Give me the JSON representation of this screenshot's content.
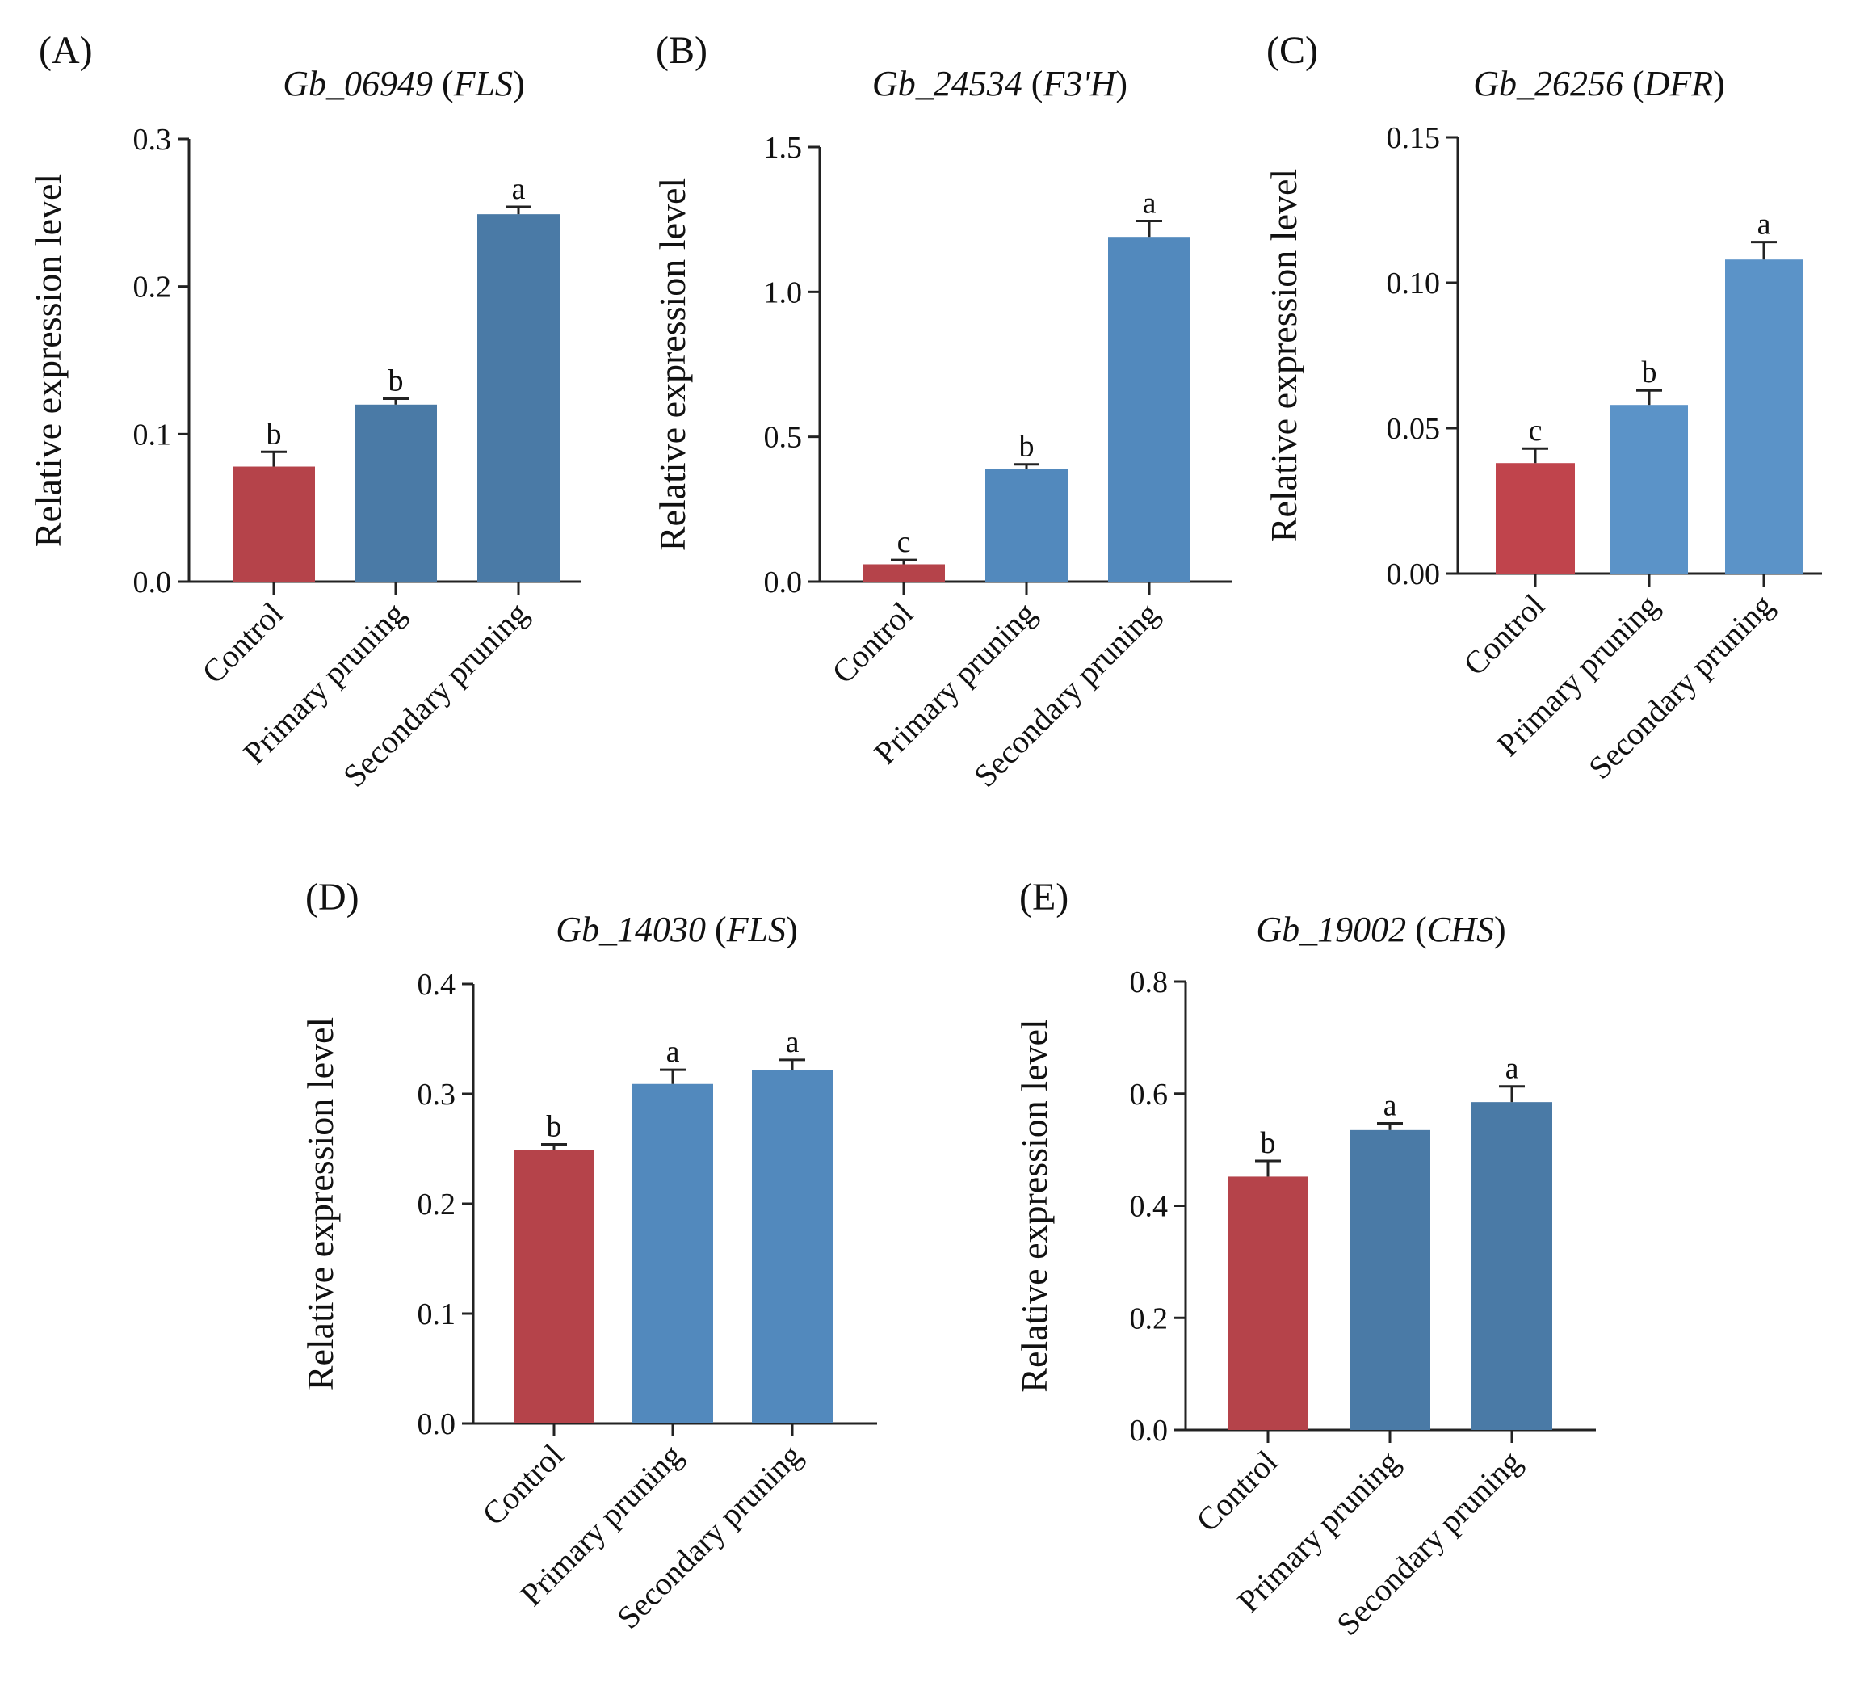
{
  "figure_domain": "qRT-PCR relative expression of flavonoid genes under pruning",
  "colors": {
    "control": "#b5434a",
    "primary_pruning_dark": "#4a7aa6",
    "secondary_pruning_dark": "#4a7aa6",
    "pruning_light": "#5289bd",
    "axis": "#222222",
    "text": "#111111"
  },
  "chart_data": [
    {
      "type": "bar",
      "panel": "(A)",
      "title_gene": "Gb_06949",
      "title_name": "FLS",
      "ylabel": "Relative expression level",
      "xlabel": "",
      "ylim": [
        0,
        0.3
      ],
      "yticks": [
        "0.0",
        "0.1",
        "0.2",
        "0.3"
      ],
      "categories": [
        "Control",
        "Primary pruning",
        "Secondary pruning"
      ],
      "values": [
        0.078,
        0.12,
        0.249
      ],
      "errors": [
        0.01,
        0.004,
        0.005
      ],
      "significance": [
        "b",
        "b",
        "a"
      ],
      "bar_colors": [
        "#b5434a",
        "#4a7aa6",
        "#4a7aa6"
      ]
    },
    {
      "type": "bar",
      "panel": "(B)",
      "title_gene": "Gb_24534",
      "title_name": "F3'H",
      "ylabel": "Relative expression level",
      "xlabel": "",
      "ylim": [
        0,
        1.5
      ],
      "yticks": [
        "0.0",
        "0.5",
        "1.0",
        "1.5"
      ],
      "categories": [
        "Control",
        "Primary pruning",
        "Secondary pruning"
      ],
      "values": [
        0.06,
        0.39,
        1.19
      ],
      "errors": [
        0.015,
        0.015,
        0.055
      ],
      "significance": [
        "c",
        "b",
        "a"
      ],
      "bar_colors": [
        "#b5434a",
        "#5289bd",
        "#5289bd"
      ]
    },
    {
      "type": "bar",
      "panel": "(C)",
      "title_gene": "Gb_26256",
      "title_name": "DFR",
      "ylabel": "Relative expression level",
      "xlabel": "",
      "ylim": [
        0,
        0.15
      ],
      "yticks": [
        "0.00",
        "0.05",
        "0.10",
        "0.15"
      ],
      "categories": [
        "Control",
        "Primary pruning",
        "Secondary pruning"
      ],
      "values": [
        0.038,
        0.058,
        0.108
      ],
      "errors": [
        0.005,
        0.005,
        0.006
      ],
      "significance": [
        "c",
        "b",
        "a"
      ],
      "bar_colors": [
        "#c0444c",
        "#5b93c8",
        "#5b93c8"
      ]
    },
    {
      "type": "bar",
      "panel": "(D)",
      "title_gene": "Gb_14030",
      "title_name": "FLS",
      "ylabel": "Relative expression level",
      "xlabel": "",
      "ylim": [
        0,
        0.4
      ],
      "yticks": [
        "0.0",
        "0.1",
        "0.2",
        "0.3",
        "0.4"
      ],
      "categories": [
        "Control",
        "Primary pruning",
        "Secondary pruning"
      ],
      "values": [
        0.249,
        0.309,
        0.322
      ],
      "errors": [
        0.005,
        0.013,
        0.009
      ],
      "significance": [
        "b",
        "a",
        "a"
      ],
      "bar_colors": [
        "#b5434a",
        "#5289bd",
        "#5289bd"
      ]
    },
    {
      "type": "bar",
      "panel": "(E)",
      "title_gene": "Gb_19002",
      "title_name": "CHS",
      "ylabel": "Relative expression level",
      "xlabel": "",
      "ylim": [
        0,
        0.8
      ],
      "yticks": [
        "0.0",
        "0.2",
        "0.4",
        "0.6",
        "0.8"
      ],
      "categories": [
        "Control",
        "Primary pruning",
        "Secondary pruning"
      ],
      "values": [
        0.452,
        0.535,
        0.585
      ],
      "errors": [
        0.028,
        0.012,
        0.028
      ],
      "significance": [
        "b",
        "a",
        "a"
      ],
      "bar_colors": [
        "#b5434a",
        "#4a7aa6",
        "#4a7aa6"
      ]
    }
  ]
}
